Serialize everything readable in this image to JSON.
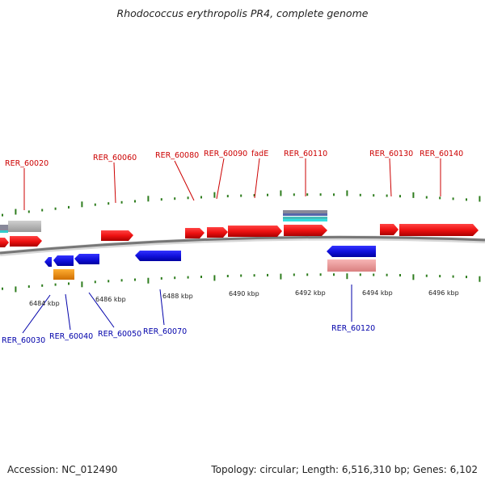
{
  "header": {
    "title": "Rhodococcus erythropolis PR4, complete genome"
  },
  "footer": {
    "accession": "Accession: NC_012490",
    "summary": "Topology: circular; Length: 6,516,310 bp; Genes: 6,102"
  },
  "colors": {
    "forward_gene": "#ee1111",
    "reverse_gene": "#1111dd",
    "backbone": "#888888",
    "tick": "#2e7d1e",
    "forward_label": "#cc0000",
    "reverse_label": "#0000aa",
    "orange_feature": "#f0900a",
    "pink_feature": "#f0a0a0",
    "grey_feature": "#bbbbbb"
  },
  "scale_labels": [
    "6484 kbp",
    "6486 kbp",
    "6488 kbp",
    "6490 kbp",
    "6492 kbp",
    "6494 kbp",
    "6496 kbp"
  ],
  "forward_gene_labels": [
    "RER_60020",
    "RER_60060",
    "RER_60080",
    "RER_60090",
    "fadE",
    "RER_60110",
    "RER_60130",
    "RER_60140"
  ],
  "reverse_gene_labels": [
    "RER_60030",
    "RER_60040",
    "RER_60050",
    "RER_60070",
    "RER_60120"
  ]
}
